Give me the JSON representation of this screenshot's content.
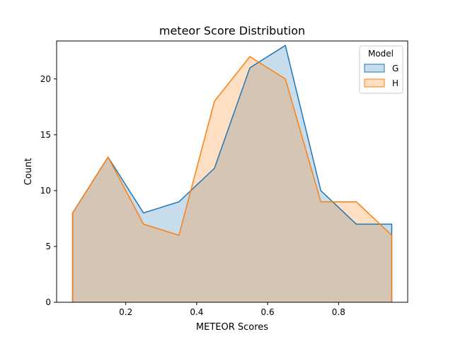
{
  "chart_data": {
    "type": "area",
    "title": "meteor Score Distribution",
    "xlabel": "METEOR Scores",
    "ylabel": "Count",
    "xlim": [
      0.005,
      0.995
    ],
    "ylim": [
      0,
      23.4
    ],
    "x_ticks": [
      0.2,
      0.4,
      0.6,
      0.8
    ],
    "x_tick_labels": [
      "0.2",
      "0.4",
      "0.6",
      "0.8"
    ],
    "y_ticks": [
      0,
      5,
      10,
      15,
      20
    ],
    "y_tick_labels": [
      "0",
      "5",
      "10",
      "15",
      "20"
    ],
    "grid": false,
    "legend": {
      "title": "Model",
      "placement": "top-right"
    },
    "x": [
      0.05,
      0.15,
      0.25,
      0.35,
      0.45,
      0.55,
      0.65,
      0.75,
      0.85,
      0.95
    ],
    "series": [
      {
        "name": "G",
        "color": "#1f77b4",
        "values": [
          8,
          13,
          8,
          9,
          12,
          21,
          23,
          10,
          7,
          7
        ]
      },
      {
        "name": "H",
        "color": "#ff7f0e",
        "values": [
          8,
          13,
          7,
          6,
          18,
          22,
          20,
          9,
          9,
          6
        ]
      }
    ]
  }
}
